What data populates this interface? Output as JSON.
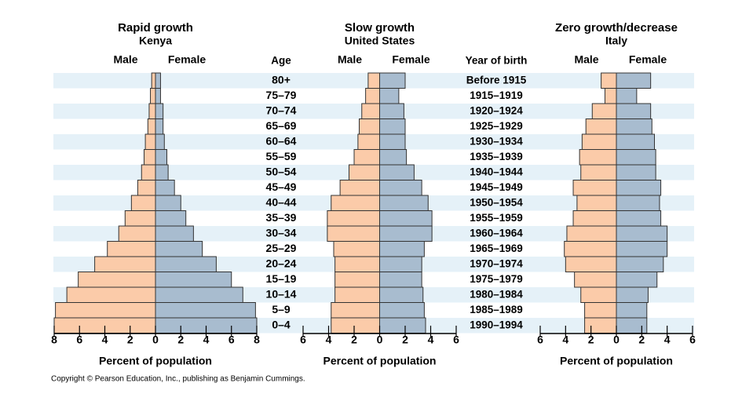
{
  "chart_data": [
    {
      "type": "population_pyramid",
      "title": "Rapid growth",
      "subtitle": "Kenya",
      "x_label": "Percent of population",
      "series": [
        {
          "name": "Male",
          "color": "#fbcba9",
          "values": [
            0.3,
            0.4,
            0.5,
            0.6,
            0.8,
            0.9,
            1.1,
            1.4,
            1.9,
            2.4,
            2.9,
            3.8,
            4.8,
            6.1,
            7.0,
            7.9,
            8.0
          ]
        },
        {
          "name": "Female",
          "color": "#a8bccf",
          "values": [
            0.4,
            0.4,
            0.6,
            0.6,
            0.7,
            0.9,
            1.0,
            1.5,
            2.0,
            2.4,
            3.0,
            3.7,
            4.8,
            6.0,
            6.9,
            7.9,
            8.0
          ]
        }
      ],
      "xlim": [
        -8,
        8
      ],
      "xticks": [
        {
          "value": -8,
          "label": "8"
        },
        {
          "value": -6,
          "label": "6"
        },
        {
          "value": -4,
          "label": "4"
        },
        {
          "value": -2,
          "label": "2"
        },
        0,
        2,
        4,
        6,
        8
      ]
    },
    {
      "type": "population_pyramid",
      "title": "Slow growth",
      "subtitle": "United States",
      "x_label": "Percent of population",
      "category_label": "Age",
      "categories": [
        "80+",
        "75–79",
        "70–74",
        "65–69",
        "60–64",
        "55–59",
        "50–54",
        "45–49",
        "40–44",
        "35–39",
        "30–34",
        "25–29",
        "20–24",
        "15–19",
        "10–14",
        "5–9",
        "0–4"
      ],
      "birth_year_label": "Year of birth",
      "birth_years": [
        "Before 1915",
        "1915–1919",
        "1920–1924",
        "1925–1929",
        "1930–1934",
        "1935–1939",
        "1940–1944",
        "1945–1949",
        "1950–1954",
        "1955–1959",
        "1960–1964",
        "1965–1969",
        "1970–1974",
        "1975–1979",
        "1980–1984",
        "1985–1989",
        "1990–1994"
      ],
      "series": [
        {
          "name": "Male",
          "color": "#fbcba9",
          "values": [
            0.9,
            1.1,
            1.4,
            1.6,
            1.7,
            2.0,
            2.4,
            3.1,
            3.8,
            4.1,
            4.1,
            3.6,
            3.5,
            3.5,
            3.5,
            3.8,
            3.8
          ]
        },
        {
          "name": "Female",
          "color": "#a8bccf",
          "values": [
            2.0,
            1.5,
            1.9,
            2.0,
            2.0,
            2.1,
            2.7,
            3.3,
            3.8,
            4.1,
            4.1,
            3.5,
            3.3,
            3.3,
            3.4,
            3.5,
            3.6
          ]
        }
      ],
      "xlim": [
        -6,
        6
      ],
      "xticks": [
        {
          "value": -6,
          "label": "6"
        },
        {
          "value": -4,
          "label": "4"
        },
        {
          "value": -2,
          "label": "2"
        },
        0,
        2,
        4,
        6
      ]
    },
    {
      "type": "population_pyramid",
      "title": "Zero growth/decrease",
      "subtitle": "Italy",
      "x_label": "Percent of population",
      "series": [
        {
          "name": "Male",
          "color": "#fbcba9",
          "values": [
            1.2,
            0.9,
            1.9,
            2.4,
            2.7,
            2.9,
            2.8,
            3.4,
            3.1,
            3.4,
            3.9,
            4.1,
            4.0,
            3.3,
            2.8,
            2.5,
            2.5
          ]
        },
        {
          "name": "Female",
          "color": "#a8bccf",
          "values": [
            2.7,
            1.6,
            2.7,
            2.8,
            3.0,
            3.1,
            3.1,
            3.5,
            3.4,
            3.5,
            4.0,
            4.0,
            3.7,
            3.2,
            2.5,
            2.4,
            2.4
          ]
        }
      ],
      "xlim": [
        -6,
        6
      ],
      "xticks": [
        {
          "value": -6,
          "label": "6"
        },
        {
          "value": -4,
          "label": "4"
        },
        {
          "value": -2,
          "label": "2"
        },
        0,
        2,
        4,
        6
      ]
    }
  ],
  "copyright": "Copyright © Pearson Education, Inc., publishing as Benjamin Cummings."
}
